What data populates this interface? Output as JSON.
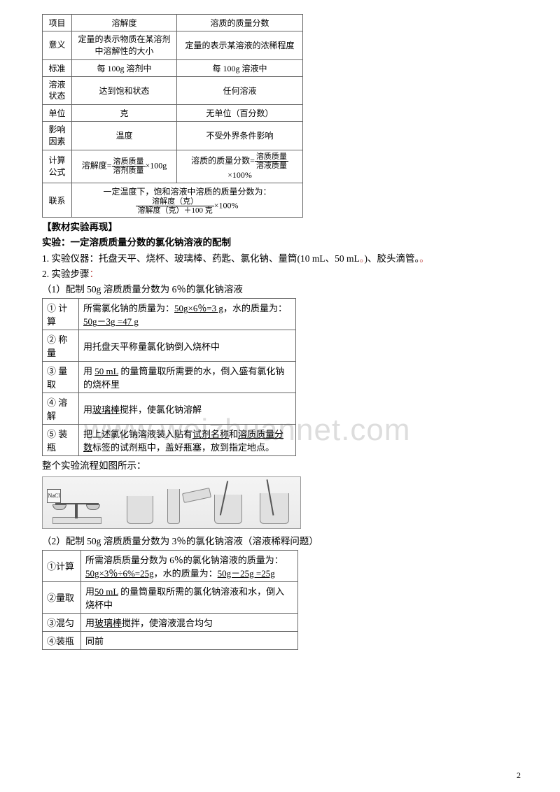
{
  "table1": {
    "headers": [
      "项目",
      "溶解度",
      "溶质的质量分数"
    ],
    "rows": [
      [
        "意义",
        "定量的表示物质在某溶剂中溶解性的大小",
        "定量的表示某溶液的浓稀程度"
      ],
      [
        "标准",
        "每 100g 溶剂中",
        "每 100g 溶液中"
      ],
      [
        "溶液状态",
        "达到饱和状态",
        "任何溶液"
      ],
      [
        "单位",
        "克",
        "无单位（百分数）"
      ],
      [
        "影响因素",
        "温度",
        "不受外界条件影响"
      ]
    ],
    "calc_label": "计算公式",
    "calc_left_prefix": "溶解度=",
    "calc_left_num": "溶质质量",
    "calc_left_den": "溶剂质量",
    "calc_left_suffix": "×100g",
    "calc_right_prefix": "溶质的质量分数=",
    "calc_right_num": "溶质质量",
    "calc_right_den": "溶液质量",
    "calc_right_suffix": "×100%",
    "link_label": "联系",
    "link_line1": "一定温度下，饱和溶液中溶质的质量分数为：",
    "link_num": "溶解度（克）",
    "link_den": "溶解度（克）＋100 克",
    "link_suffix": "×100%"
  },
  "section1": {
    "h1": "【教材实验再现】",
    "h2": "实验：一定溶质质量分数的氯化钠溶液的配制",
    "line1_a": "1. 实验仪器：托盘天平、烧杯、玻璃棒、药匙、氯化钠、量筒(10 mL、50 mL",
    "line1_b": ")、胶头滴管。",
    "line1_dot": "。",
    "line2": "2. 实验步骤",
    "dot2": "："
  },
  "part1": {
    "title": "（1）配制 50g 溶质质量分数为 6％的氯化钠溶液",
    "rows": [
      {
        "k": "① 计算",
        "v_a": "所需氯化钠的质量为：",
        "u1": "50g×6％=3 g",
        "v_b": "，水的质量为：",
        "u2": "50g－3g =47 g"
      },
      {
        "k": "② 称量",
        "v": "用托盘天平称量氯化钠倒入烧杯中"
      },
      {
        "k": "③ 量取",
        "v_a": "用 ",
        "u1": "50 mL",
        "v_b": " 的量筒量取所需要的水，倒入盛有氯化钠的烧杯里"
      },
      {
        "k": "④ 溶解",
        "v_a": "用",
        "u1": "玻璃棒",
        "v_b": "搅拌，使氯化钠溶解"
      },
      {
        "k": "⑤ 装瓶",
        "v_a": "把上述氯化钠溶液装入贴有",
        "u1": "试剂名称",
        "v_b": "和",
        "u2": "溶质质量分数",
        "v_c": "标签的试剂瓶中，盖好瓶塞，放到指定地点。"
      }
    ],
    "flow_caption": "整个实验流程如图所示："
  },
  "part2": {
    "title": "（2）配制 50g 溶质质量分数为 3％的氯化钠溶液（溶液稀释问题）",
    "rows": [
      {
        "k": "①计算",
        "v_a": "所需溶质质量分数为 6％的氯化钠溶液的质量为：",
        "u1": "50g×3％÷6%=25g",
        "v_b": "，水的质量为：",
        "u2": "50g－25g =25g"
      },
      {
        "k": "②量取",
        "v_a": "用",
        "u1": "50 mL",
        "v_b": " 的量筒量取所需的氯化钠溶液和水，倒入烧杯中"
      },
      {
        "k": "③混匀",
        "v_a": "用",
        "u1": "玻璃棒",
        "v_b": "搅拌，使溶液混合均匀"
      },
      {
        "k": "④装瓶",
        "v": "同前"
      }
    ]
  },
  "fig": {
    "nacl": "NaCl"
  },
  "watermark": "www.weizhuannet.com",
  "page_number": "2"
}
